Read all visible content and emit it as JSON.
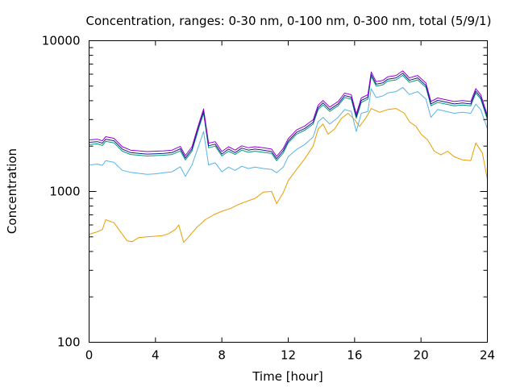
{
  "chart_data": {
    "type": "line",
    "title": "Concentration, ranges: 0-30 nm, 0-100 nm, 0-300 nm, total (5/9/1)",
    "xlabel": "Time [hour]",
    "ylabel": "Concentration",
    "xlim": [
      0,
      24
    ],
    "ylim": [
      100,
      10000
    ],
    "yscale": "log",
    "xticks": [
      0,
      4,
      8,
      12,
      16,
      20,
      24
    ],
    "yticks": [
      100,
      1000,
      10000
    ],
    "xtick_labels": [
      "0",
      "4",
      "8",
      "12",
      "16",
      "20",
      "24"
    ],
    "ytick_labels": [
      "100",
      "1000",
      "10000"
    ],
    "grid": false,
    "series": [
      {
        "color": "#e69f00",
        "x": [
          0,
          0.5,
          0.8,
          1,
          1.5,
          2,
          2.3,
          2.6,
          3,
          3.5,
          4,
          4.4,
          4.8,
          5.2,
          5.4,
          5.7,
          6,
          6.5,
          7,
          7.5,
          8,
          8.5,
          9,
          9.5,
          10,
          10.5,
          11,
          11.3,
          11.7,
          12,
          12.5,
          13,
          13.5,
          13.8,
          14.1,
          14.4,
          14.8,
          15.2,
          15.6,
          16,
          16.3,
          16.7,
          17,
          17.5,
          18,
          18.5,
          19,
          19.3,
          19.7,
          20,
          20.4,
          20.8,
          21.2,
          21.6,
          22,
          22.5,
          23,
          23.3,
          23.7,
          24
        ],
        "y": [
          520,
          540,
          560,
          650,
          620,
          520,
          470,
          465,
          495,
          500,
          505,
          510,
          525,
          560,
          600,
          460,
          500,
          580,
          650,
          700,
          740,
          770,
          820,
          860,
          900,
          990,
          1000,
          830,
          980,
          1180,
          1400,
          1650,
          2000,
          2600,
          2800,
          2400,
          2600,
          3050,
          3300,
          3000,
          2700,
          3100,
          3550,
          3350,
          3500,
          3550,
          3300,
          2900,
          2700,
          2400,
          2200,
          1850,
          1750,
          1850,
          1700,
          1620,
          1600,
          2100,
          1800,
          1200
        ]
      },
      {
        "color": "#56b4e9",
        "x": [
          0,
          0.5,
          0.8,
          1,
          1.5,
          2,
          2.5,
          3,
          3.5,
          4,
          4.5,
          5,
          5.5,
          5.8,
          6.2,
          6.6,
          6.9,
          7.2,
          7.6,
          8,
          8.4,
          8.8,
          9.2,
          9.6,
          10,
          10.5,
          11,
          11.3,
          11.7,
          12,
          12.5,
          13,
          13.5,
          13.8,
          14.1,
          14.5,
          15,
          15.4,
          15.8,
          16.1,
          16.4,
          16.8,
          17,
          17.3,
          17.7,
          18,
          18.5,
          18.9,
          19.3,
          19.8,
          20.3,
          20.6,
          21,
          21.5,
          22,
          22.5,
          23,
          23.3,
          23.6,
          24
        ],
        "y": [
          1500,
          1520,
          1490,
          1600,
          1560,
          1380,
          1340,
          1320,
          1300,
          1310,
          1330,
          1350,
          1460,
          1260,
          1500,
          2000,
          2500,
          1500,
          1550,
          1350,
          1450,
          1380,
          1470,
          1420,
          1450,
          1420,
          1400,
          1330,
          1450,
          1700,
          1900,
          2050,
          2300,
          2900,
          3100,
          2800,
          3100,
          3500,
          3400,
          2500,
          3300,
          3400,
          4800,
          4200,
          4300,
          4500,
          4600,
          4900,
          4400,
          4600,
          4100,
          3100,
          3500,
          3400,
          3300,
          3350,
          3300,
          3800,
          3500,
          2600
        ]
      },
      {
        "color": "#009e73",
        "x": [
          0,
          0.5,
          0.8,
          1,
          1.5,
          2,
          2.5,
          3,
          3.5,
          4,
          4.5,
          5,
          5.5,
          5.8,
          6.2,
          6.6,
          6.9,
          7.2,
          7.6,
          8,
          8.4,
          8.8,
          9.2,
          9.6,
          10,
          10.5,
          11,
          11.3,
          11.7,
          12,
          12.5,
          13,
          13.5,
          13.8,
          14.1,
          14.5,
          15,
          15.4,
          15.8,
          16.1,
          16.4,
          16.8,
          17,
          17.3,
          17.7,
          18,
          18.5,
          18.9,
          19.3,
          19.8,
          20.3,
          20.6,
          21,
          21.5,
          22,
          22.5,
          23,
          23.3,
          23.6,
          24
        ],
        "y": [
          2050,
          2070,
          2020,
          2150,
          2100,
          1850,
          1760,
          1740,
          1720,
          1730,
          1740,
          1760,
          1860,
          1620,
          1850,
          2600,
          3300,
          1950,
          2000,
          1720,
          1850,
          1760,
          1880,
          1820,
          1850,
          1820,
          1790,
          1600,
          1800,
          2100,
          2400,
          2550,
          2800,
          3500,
          3750,
          3400,
          3700,
          4200,
          4100,
          3050,
          3900,
          4100,
          5800,
          5000,
          5100,
          5400,
          5500,
          5900,
          5300,
          5500,
          4900,
          3700,
          3900,
          3800,
          3700,
          3750,
          3700,
          4500,
          4100,
          3000
        ]
      },
      {
        "color": "#1a1a8c",
        "x": [
          0,
          0.5,
          0.8,
          1,
          1.5,
          2,
          2.5,
          3,
          3.5,
          4,
          4.5,
          5,
          5.5,
          5.8,
          6.2,
          6.6,
          6.9,
          7.2,
          7.6,
          8,
          8.4,
          8.8,
          9.2,
          9.6,
          10,
          10.5,
          11,
          11.3,
          11.7,
          12,
          12.5,
          13,
          13.5,
          13.8,
          14.1,
          14.5,
          15,
          15.4,
          15.8,
          16.1,
          16.4,
          16.8,
          17,
          17.3,
          17.7,
          18,
          18.5,
          18.9,
          19.3,
          19.8,
          20.3,
          20.6,
          21,
          21.5,
          22,
          22.5,
          23,
          23.3,
          23.6,
          24
        ],
        "y": [
          2120,
          2140,
          2090,
          2220,
          2170,
          1910,
          1810,
          1790,
          1770,
          1780,
          1790,
          1810,
          1920,
          1670,
          1910,
          2680,
          3400,
          2010,
          2060,
          1770,
          1910,
          1810,
          1940,
          1880,
          1910,
          1880,
          1840,
          1650,
          1860,
          2160,
          2470,
          2620,
          2880,
          3600,
          3870,
          3500,
          3810,
          4330,
          4220,
          3140,
          4020,
          4220,
          5980,
          5150,
          5250,
          5560,
          5670,
          6080,
          5460,
          5670,
          5050,
          3810,
          4020,
          3920,
          3810,
          3860,
          3810,
          4640,
          4220,
          3090
        ]
      },
      {
        "color": "#9400d3",
        "x": [
          0,
          0.5,
          0.8,
          1,
          1.5,
          2,
          2.5,
          3,
          3.5,
          4,
          4.5,
          5,
          5.5,
          5.8,
          6.2,
          6.6,
          6.9,
          7.2,
          7.6,
          8,
          8.4,
          8.8,
          9.2,
          9.6,
          10,
          10.5,
          11,
          11.3,
          11.7,
          12,
          12.5,
          13,
          13.5,
          13.8,
          14.1,
          14.5,
          15,
          15.4,
          15.8,
          16.1,
          16.4,
          16.8,
          17,
          17.3,
          17.7,
          18,
          18.5,
          18.9,
          19.3,
          19.8,
          20.3,
          20.6,
          21,
          21.5,
          22,
          22.5,
          23,
          23.3,
          23.6,
          24
        ],
        "y": [
          2200,
          2220,
          2170,
          2310,
          2250,
          1980,
          1880,
          1860,
          1840,
          1850,
          1860,
          1880,
          1990,
          1730,
          1980,
          2780,
          3530,
          2090,
          2140,
          1840,
          1980,
          1880,
          2010,
          1950,
          1980,
          1950,
          1910,
          1710,
          1930,
          2240,
          2560,
          2720,
          2990,
          3740,
          4010,
          3630,
          3950,
          4490,
          4380,
          3260,
          4170,
          4380,
          6200,
          5350,
          5450,
          5770,
          5880,
          6310,
          5670,
          5880,
          5240,
          3950,
          4170,
          4060,
          3950,
          4010,
          3950,
          4810,
          4380,
          3200
        ]
      }
    ]
  }
}
